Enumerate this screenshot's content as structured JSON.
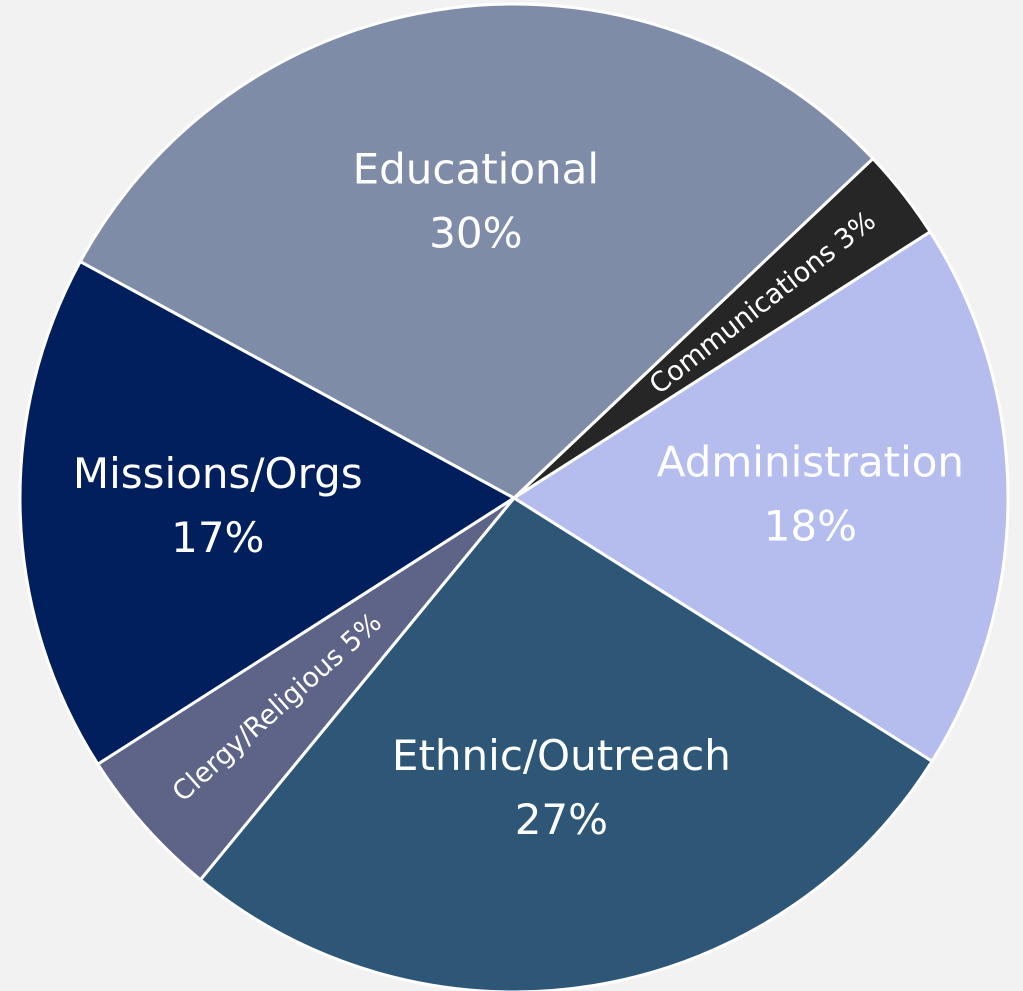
{
  "chart_data": {
    "type": "pie",
    "categories": [
      "Communications",
      "Administration",
      "Ethnic/Outreach",
      "Clergy/Religious",
      "Missions/Orgs",
      "Educational"
    ],
    "values": [
      3,
      18,
      27,
      5,
      17,
      30
    ],
    "value_labels": [
      "3%",
      "18%",
      "27%",
      "5%",
      "17%",
      "30%"
    ],
    "colors": [
      "#262626",
      "#b4bdee",
      "#2e5777",
      "#5e6487",
      "#001f5c",
      "#7f8ca8"
    ]
  }
}
